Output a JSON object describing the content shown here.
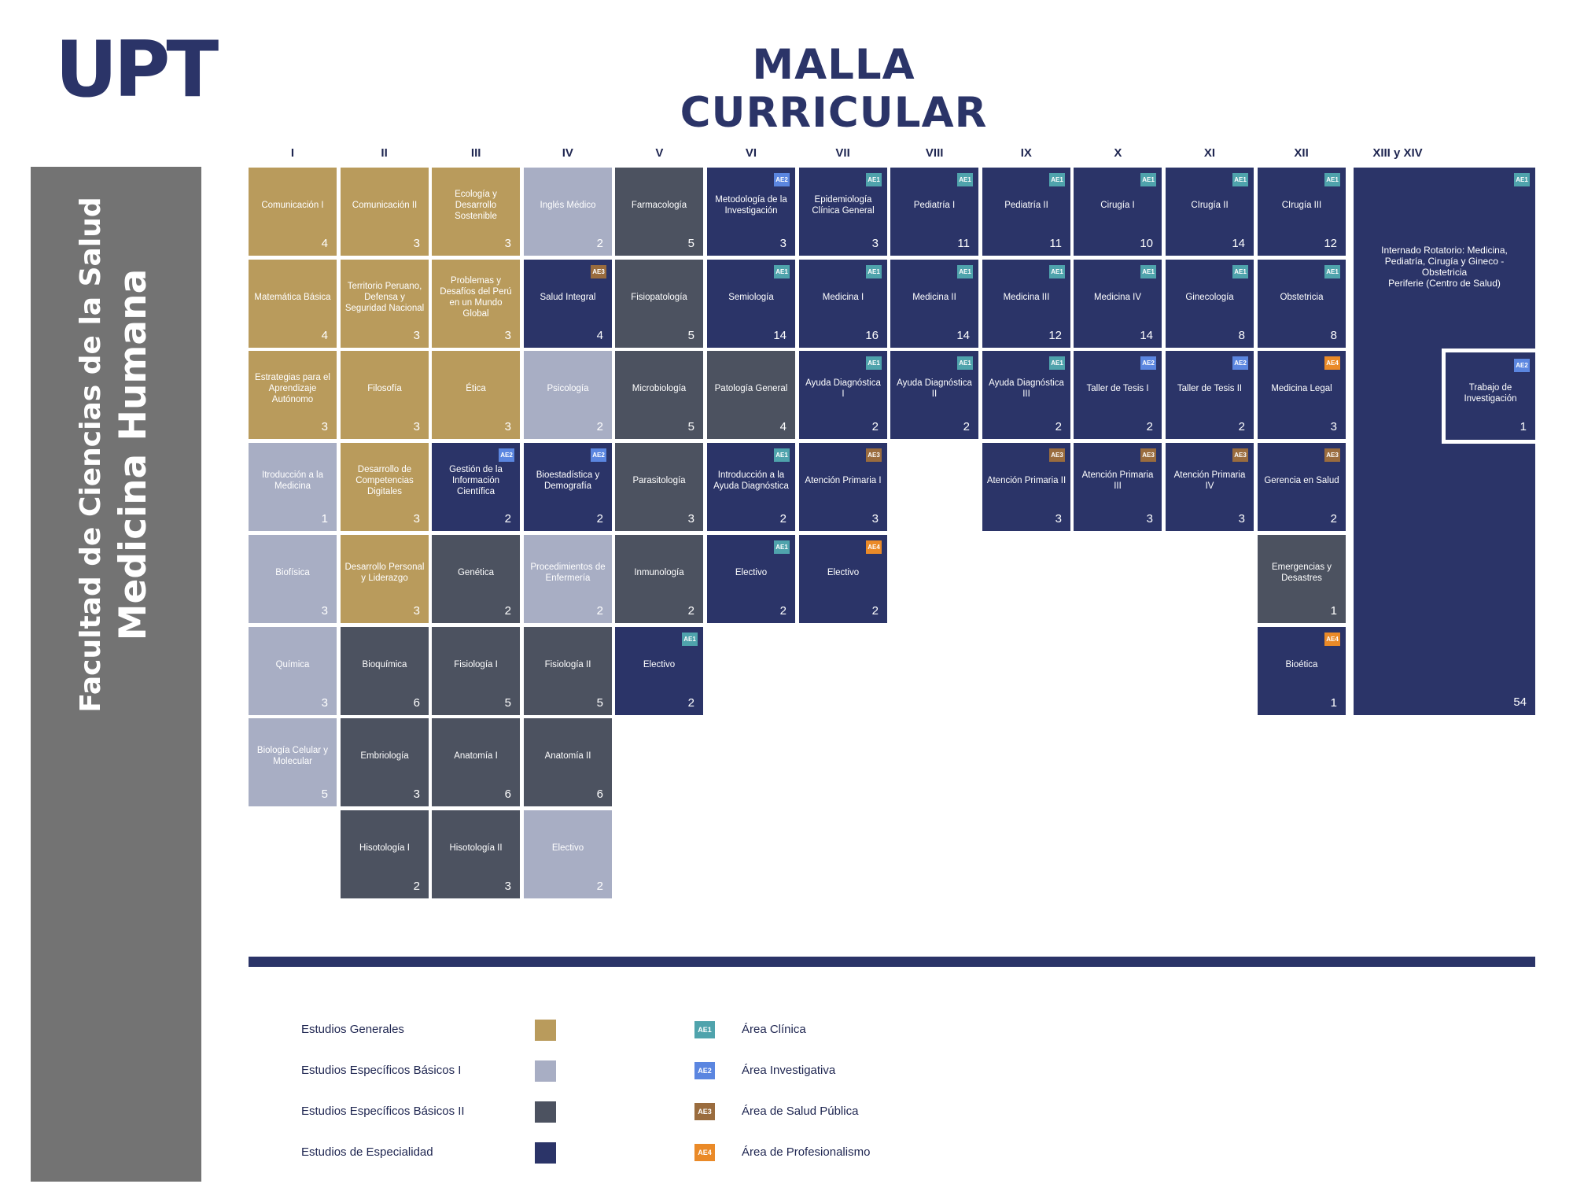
{
  "logo": "UPT",
  "title": "MALLA CURRICULAR",
  "sidebar": {
    "faculty": "Facultad de Ciencias de la Salud",
    "career": "Medicina Humana"
  },
  "semesters": [
    "I",
    "II",
    "III",
    "IV",
    "V",
    "VI",
    "VII",
    "VIII",
    "IX",
    "X",
    "XI",
    "XII",
    "XIII y XIV"
  ],
  "colors": {
    "generales": "#b99b5c",
    "basicos1": "#a8aec4",
    "basicos2": "#4c5260",
    "especialidad": "#2b3468",
    "ae1": "#4fa3ac",
    "ae2": "#5b86e0",
    "ae3": "#9a6c3e",
    "ae4": "#ea8a28"
  },
  "courses": [
    {
      "col": 0,
      "row": 0,
      "name": "Comunicación I",
      "credits": "4",
      "cat": "gen"
    },
    {
      "col": 0,
      "row": 1,
      "name": "Matemática Básica",
      "credits": "4",
      "cat": "gen"
    },
    {
      "col": 0,
      "row": 2,
      "name": "Estrategias para el Aprendizaje Autónomo",
      "credits": "3",
      "cat": "gen"
    },
    {
      "col": 0,
      "row": 3,
      "name": "Itroducción a la Medicina",
      "credits": "1",
      "cat": "b1"
    },
    {
      "col": 0,
      "row": 4,
      "name": "Biofísica",
      "credits": "3",
      "cat": "b1"
    },
    {
      "col": 0,
      "row": 5,
      "name": "Química",
      "credits": "3",
      "cat": "b1"
    },
    {
      "col": 0,
      "row": 6,
      "name": "Biología Celular y Molecular",
      "credits": "5",
      "cat": "b1"
    },
    {
      "col": 1,
      "row": 0,
      "name": "Comunicación II",
      "credits": "3",
      "cat": "gen"
    },
    {
      "col": 1,
      "row": 1,
      "name": "Territorio Peruano, Defensa y Seguridad Nacional",
      "credits": "3",
      "cat": "gen"
    },
    {
      "col": 1,
      "row": 2,
      "name": "Filosofía",
      "credits": "3",
      "cat": "gen"
    },
    {
      "col": 1,
      "row": 3,
      "name": "Desarrollo de Competencias Digitales",
      "credits": "3",
      "cat": "gen"
    },
    {
      "col": 1,
      "row": 4,
      "name": "Desarrollo Personal y Liderazgo",
      "credits": "3",
      "cat": "gen"
    },
    {
      "col": 1,
      "row": 5,
      "name": "Bioquímica",
      "credits": "6",
      "cat": "b2"
    },
    {
      "col": 1,
      "row": 6,
      "name": "Embriología",
      "credits": "3",
      "cat": "b2"
    },
    {
      "col": 1,
      "row": 7,
      "name": "Hisotología I",
      "credits": "2",
      "cat": "b2"
    },
    {
      "col": 2,
      "row": 0,
      "name": "Ecología y Desarrollo Sostenible",
      "credits": "3",
      "cat": "gen"
    },
    {
      "col": 2,
      "row": 1,
      "name": "Problemas y Desafíos del Perú en un Mundo Global",
      "credits": "3",
      "cat": "gen"
    },
    {
      "col": 2,
      "row": 2,
      "name": "Ética",
      "credits": "3",
      "cat": "gen"
    },
    {
      "col": 2,
      "row": 3,
      "name": "Gestión de la Información Científica",
      "credits": "2",
      "cat": "esp",
      "badge": "AE2"
    },
    {
      "col": 2,
      "row": 4,
      "name": "Genética",
      "credits": "2",
      "cat": "b2"
    },
    {
      "col": 2,
      "row": 5,
      "name": "Fisiología I",
      "credits": "5",
      "cat": "b2"
    },
    {
      "col": 2,
      "row": 6,
      "name": "Anatomía I",
      "credits": "6",
      "cat": "b2"
    },
    {
      "col": 2,
      "row": 7,
      "name": "Hisotología II",
      "credits": "3",
      "cat": "b2"
    },
    {
      "col": 3,
      "row": 0,
      "name": "Inglés Médico",
      "credits": "2",
      "cat": "b1"
    },
    {
      "col": 3,
      "row": 1,
      "name": "Salud Integral",
      "credits": "4",
      "cat": "esp",
      "badge": "AE3"
    },
    {
      "col": 3,
      "row": 2,
      "name": "Psicología",
      "credits": "2",
      "cat": "b1"
    },
    {
      "col": 3,
      "row": 3,
      "name": "Bioestadística y Demografía",
      "credits": "2",
      "cat": "esp",
      "badge": "AE2"
    },
    {
      "col": 3,
      "row": 4,
      "name": "Procedimientos de Enfermería",
      "credits": "2",
      "cat": "b1"
    },
    {
      "col": 3,
      "row": 5,
      "name": "Fisiología II",
      "credits": "5",
      "cat": "b2"
    },
    {
      "col": 3,
      "row": 6,
      "name": "Anatomía II",
      "credits": "6",
      "cat": "b2"
    },
    {
      "col": 3,
      "row": 7,
      "name": "Electivo",
      "credits": "2",
      "cat": "b1"
    },
    {
      "col": 4,
      "row": 0,
      "name": "Farmacología",
      "credits": "5",
      "cat": "b2"
    },
    {
      "col": 4,
      "row": 1,
      "name": "Fisiopatología",
      "credits": "5",
      "cat": "b2"
    },
    {
      "col": 4,
      "row": 2,
      "name": "Microbiología",
      "credits": "5",
      "cat": "b2"
    },
    {
      "col": 4,
      "row": 3,
      "name": "Parasitología",
      "credits": "3",
      "cat": "b2"
    },
    {
      "col": 4,
      "row": 4,
      "name": "Inmunología",
      "credits": "2",
      "cat": "b2"
    },
    {
      "col": 4,
      "row": 5,
      "name": "Electivo",
      "credits": "2",
      "cat": "esp",
      "badge": "AE1"
    },
    {
      "col": 5,
      "row": 0,
      "name": "Metodología de la Investigación",
      "credits": "3",
      "cat": "esp",
      "badge": "AE2"
    },
    {
      "col": 5,
      "row": 1,
      "name": "Semiología",
      "credits": "14",
      "cat": "esp",
      "badge": "AE1"
    },
    {
      "col": 5,
      "row": 2,
      "name": "Patología General",
      "credits": "4",
      "cat": "b2"
    },
    {
      "col": 5,
      "row": 3,
      "name": "Introducción a la Ayuda Diagnóstica",
      "credits": "2",
      "cat": "esp",
      "badge": "AE1"
    },
    {
      "col": 5,
      "row": 4,
      "name": "Electivo",
      "credits": "2",
      "cat": "esp",
      "badge": "AE1"
    },
    {
      "col": 6,
      "row": 0,
      "name": "Epidemiología Clínica General",
      "credits": "3",
      "cat": "esp",
      "badge": "AE1"
    },
    {
      "col": 6,
      "row": 1,
      "name": "Medicina I",
      "credits": "16",
      "cat": "esp",
      "badge": "AE1"
    },
    {
      "col": 6,
      "row": 2,
      "name": "Ayuda Diagnóstica I",
      "credits": "2",
      "cat": "esp",
      "badge": "AE1"
    },
    {
      "col": 6,
      "row": 3,
      "name": "Atención Primaria I",
      "credits": "3",
      "cat": "esp",
      "badge": "AE3"
    },
    {
      "col": 6,
      "row": 4,
      "name": "Electivo",
      "credits": "2",
      "cat": "esp",
      "badge": "AE4"
    },
    {
      "col": 7,
      "row": 0,
      "name": "Pediatría I",
      "credits": "11",
      "cat": "esp",
      "badge": "AE1"
    },
    {
      "col": 7,
      "row": 1,
      "name": "Medicina II",
      "credits": "14",
      "cat": "esp",
      "badge": "AE1"
    },
    {
      "col": 7,
      "row": 2,
      "name": "Ayuda Diagnóstica II",
      "credits": "2",
      "cat": "esp",
      "badge": "AE1"
    },
    {
      "col": 8,
      "row": 0,
      "name": "Pediatría II",
      "credits": "11",
      "cat": "esp",
      "badge": "AE1"
    },
    {
      "col": 8,
      "row": 1,
      "name": "Medicina III",
      "credits": "12",
      "cat": "esp",
      "badge": "AE1"
    },
    {
      "col": 8,
      "row": 2,
      "name": "Ayuda Diagnóstica III",
      "credits": "2",
      "cat": "esp",
      "badge": "AE1"
    },
    {
      "col": 8,
      "row": 3,
      "name": "Atención Primaria II",
      "credits": "3",
      "cat": "esp",
      "badge": "AE3"
    },
    {
      "col": 9,
      "row": 0,
      "name": "Cirugía I",
      "credits": "10",
      "cat": "esp",
      "badge": "AE1"
    },
    {
      "col": 9,
      "row": 1,
      "name": "Medicina IV",
      "credits": "14",
      "cat": "esp",
      "badge": "AE1"
    },
    {
      "col": 9,
      "row": 2,
      "name": "Taller de Tesis I",
      "credits": "2",
      "cat": "esp",
      "badge": "AE2"
    },
    {
      "col": 9,
      "row": 3,
      "name": "Atención Primaria III",
      "credits": "3",
      "cat": "esp",
      "badge": "AE3"
    },
    {
      "col": 10,
      "row": 0,
      "name": "CIrugía II",
      "credits": "14",
      "cat": "esp",
      "badge": "AE1"
    },
    {
      "col": 10,
      "row": 1,
      "name": "Ginecología",
      "credits": "8",
      "cat": "esp",
      "badge": "AE1"
    },
    {
      "col": 10,
      "row": 2,
      "name": "Taller de Tesis II",
      "credits": "2",
      "cat": "esp",
      "badge": "AE2"
    },
    {
      "col": 10,
      "row": 3,
      "name": "Atención Primaria IV",
      "credits": "3",
      "cat": "esp",
      "badge": "AE3"
    },
    {
      "col": 11,
      "row": 0,
      "name": "CIrugía III",
      "credits": "12",
      "cat": "esp",
      "badge": "AE1"
    },
    {
      "col": 11,
      "row": 1,
      "name": "Obstetricia",
      "credits": "8",
      "cat": "esp",
      "badge": "AE1"
    },
    {
      "col": 11,
      "row": 2,
      "name": "Medicina Legal",
      "credits": "3",
      "cat": "esp",
      "badge": "AE4"
    },
    {
      "col": 11,
      "row": 3,
      "name": "Gerencia en Salud",
      "credits": "2",
      "cat": "esp",
      "badge": "AE3"
    },
    {
      "col": 11,
      "row": 4,
      "name": "Emergencias y Desastres",
      "credits": "1",
      "cat": "b2"
    },
    {
      "col": 11,
      "row": 5,
      "name": "Bioética",
      "credits": "1",
      "cat": "esp",
      "badge": "AE4"
    }
  ],
  "internado": {
    "name_line1": "Internado Rotatorio: Medicina, Pediatría, Cirugía y Gineco - Obstetricia",
    "name_line2": "Periferie (Centro de Salud)",
    "credits": "54",
    "badge": "AE1"
  },
  "trabajo": {
    "name": "Trabajo de Investigación",
    "credits": "1",
    "badge": "AE2"
  },
  "legend": {
    "categories": [
      {
        "label": "Estudios Generales",
        "cat": "gen"
      },
      {
        "label": "Estudios Específicos Básicos I",
        "cat": "b1"
      },
      {
        "label": "Estudios Específicos Básicos II",
        "cat": "b2"
      },
      {
        "label": "Estudios de Especialidad",
        "cat": "esp"
      }
    ],
    "areas": [
      {
        "code": "AE1",
        "label": "Área Clínica"
      },
      {
        "code": "AE2",
        "label": "Área Investigativa"
      },
      {
        "code": "AE3",
        "label": "Área de Salud Pública"
      },
      {
        "code": "AE4",
        "label": "Área de Profesionalismo"
      }
    ]
  }
}
